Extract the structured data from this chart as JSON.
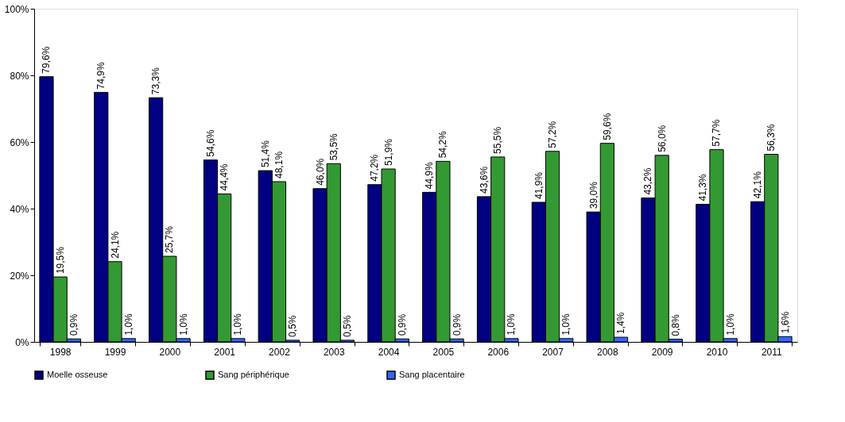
{
  "chart_data": {
    "type": "bar",
    "categories": [
      "1998",
      "1999",
      "2000",
      "2001",
      "2002",
      "2003",
      "2004",
      "2005",
      "2006",
      "2007",
      "2008",
      "2009",
      "2010",
      "2011"
    ],
    "series": [
      {
        "name": "Moelle osseuse",
        "color": "#000080",
        "values": [
          79.6,
          74.9,
          73.3,
          54.6,
          51.4,
          46.0,
          47.2,
          44.9,
          43.6,
          41.9,
          39.0,
          43.2,
          41.3,
          42.1
        ],
        "value_labels": [
          "79,6%",
          "74,9%",
          "73,3%",
          "54,6%",
          "51,4%",
          "46,0%",
          "47,2%",
          "44,9%",
          "43,6%",
          "41,9%",
          "39,0%",
          "43,2%",
          "41,3%",
          "42,1%"
        ]
      },
      {
        "name": "Sang périphérique",
        "color": "#339933",
        "values": [
          19.5,
          24.1,
          25.7,
          44.4,
          48.1,
          53.5,
          51.9,
          54.2,
          55.5,
          57.2,
          59.6,
          56.0,
          57.7,
          56.3
        ],
        "value_labels": [
          "19,5%",
          "24,1%",
          "25,7%",
          "44,4%",
          "48,1%",
          "53,5%",
          "51,9%",
          "54,2%",
          "55,5%",
          "57,2%",
          "59,6%",
          "56,0%",
          "57,7%",
          "56,3%"
        ]
      },
      {
        "name": "Sang placentaire",
        "color": "#3366ff",
        "values": [
          0.9,
          1.0,
          1.0,
          1.0,
          0.5,
          0.5,
          0.9,
          0.9,
          1.0,
          1.0,
          1.4,
          0.8,
          1.0,
          1.6
        ],
        "value_labels": [
          "0,9%",
          "1,0%",
          "1,0%",
          "1,0%",
          "0,5%",
          "0,5%",
          "0,9%",
          "0,9%",
          "1,0%",
          "1,0%",
          "1,4%",
          "0,8%",
          "1,0%",
          "1,6%"
        ]
      }
    ],
    "ylim": [
      0,
      100
    ],
    "yticks": [
      {
        "value": 0,
        "label": "0%"
      },
      {
        "value": 20,
        "label": "20%"
      },
      {
        "value": 40,
        "label": "40%"
      },
      {
        "value": 60,
        "label": "60%"
      },
      {
        "value": 80,
        "label": "80%"
      },
      {
        "value": 100,
        "label": "100%"
      }
    ],
    "grid": false,
    "legend": "bottom"
  }
}
